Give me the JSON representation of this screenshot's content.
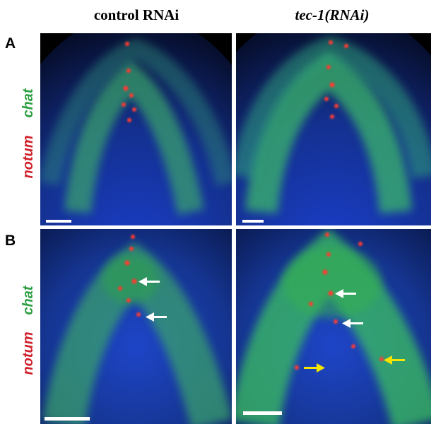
{
  "columns": [
    "control RNAi",
    "tec-1(RNAi)"
  ],
  "rows": [
    {
      "label": "A",
      "probes": [
        "notum",
        "chat"
      ]
    },
    {
      "label": "B",
      "probes": [
        "notum",
        "chat"
      ]
    }
  ]
}
